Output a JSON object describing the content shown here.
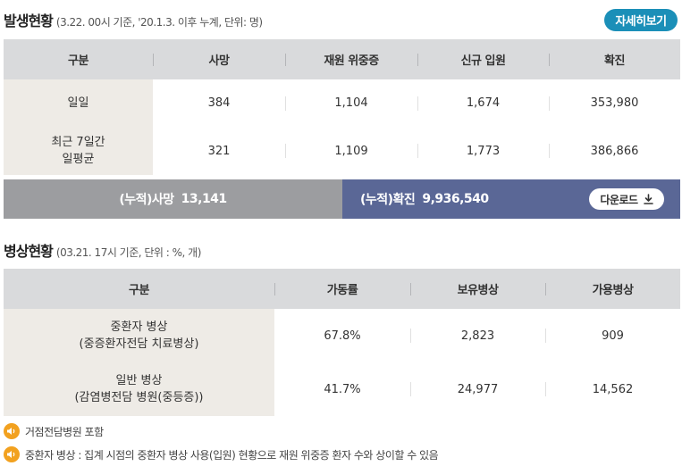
{
  "occurrence": {
    "title": "발생현황",
    "subtitle": "(3.22. 00시 기준, '20.1.3. 이후 누계, 단위: 명)",
    "detail_button": "자세히보기",
    "headers": [
      "구분",
      "사망",
      "재원 위중증",
      "신규 입원",
      "확진"
    ],
    "rows": [
      {
        "label": [
          "일일"
        ],
        "values": [
          "384",
          "1,104",
          "1,674",
          "353,980"
        ]
      },
      {
        "label": [
          "최근 7일간",
          "일평균"
        ],
        "values": [
          "321",
          "1,109",
          "1,773",
          "386,866"
        ]
      }
    ],
    "cumulative_deaths_label": "(누적)사망",
    "cumulative_deaths_value": "13,141",
    "cumulative_confirmed_label": "(누적)확진",
    "cumulative_confirmed_value": "9,936,540",
    "download_button": "다운로드"
  },
  "beds": {
    "title": "병상현황",
    "subtitle": "(03.21. 17시 기준, 단위 : %, 개)",
    "headers": [
      "구분",
      "가동률",
      "보유병상",
      "가용병상"
    ],
    "rows": [
      {
        "label": [
          "중환자 병상",
          "(중증환자전담 치료병상)"
        ],
        "values": [
          "67.8%",
          "2,823",
          "909"
        ]
      },
      {
        "label": [
          "일반 병상",
          "(감염병전담 병원(중등증))"
        ],
        "values": [
          "41.7%",
          "24,977",
          "14,562"
        ]
      }
    ]
  },
  "notes": [
    "거점전담병원 포함",
    "중환자 병상 : 집계 시점의 중환자 병상 사용(입원) 현황으로 재원 위중증 환자 수와 상이할 수 있음"
  ],
  "colors": {
    "accent_blue": "#1b8fb8",
    "cumulative_gray": "#9c9da0",
    "cumulative_navy": "#5a6796",
    "note_icon_orange": "#f2a11f"
  },
  "icons": {
    "download": "download-arrow-icon",
    "note": "speaker-icon"
  }
}
